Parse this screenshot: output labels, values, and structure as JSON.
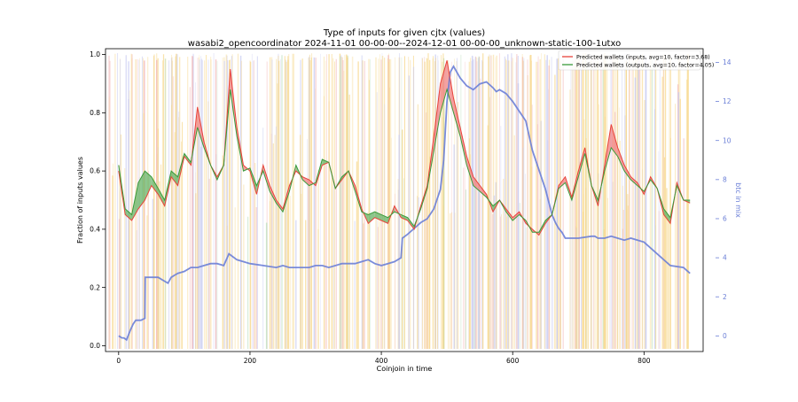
{
  "chart_data": {
    "type": "line",
    "title": "Type of inputs for given cjtx (values)",
    "subtitle": "wasabi2_opencoordinator 2024-11-01 00-00-00--2024-12-01 00-00-00_unknown-static-100-1utxo",
    "xlabel": "Coinjoin in time",
    "ylabel": "Fraction of inputs values",
    "ylabel_right": "btc in mix",
    "xlim": [
      -20,
      890
    ],
    "ylim": [
      -0.02,
      1.02
    ],
    "ylim_right": [
      -0.8,
      14.7
    ],
    "xticks": [
      0,
      200,
      400,
      600,
      800
    ],
    "yticks": [
      0.0,
      0.2,
      0.4,
      0.6,
      0.8,
      1.0
    ],
    "yticks_right": [
      0,
      2,
      4,
      6,
      8,
      10,
      12,
      14
    ],
    "legend_position": "top-right",
    "colors": {
      "inputs": "#e8433a",
      "outputs": "#3a9a3a",
      "btc": "#6b7fd7",
      "fill_red": "#f08080",
      "fill_green": "#66b366"
    },
    "series": [
      {
        "name": "Predicted wallets (inputs, avg=10, factor=3.68)",
        "x": [
          0,
          10,
          20,
          30,
          40,
          50,
          60,
          70,
          80,
          90,
          100,
          110,
          120,
          130,
          140,
          150,
          160,
          170,
          180,
          190,
          200,
          210,
          220,
          230,
          240,
          250,
          260,
          270,
          280,
          290,
          300,
          310,
          320,
          330,
          340,
          350,
          360,
          370,
          380,
          390,
          400,
          410,
          420,
          430,
          440,
          450,
          460,
          470,
          480,
          490,
          500,
          510,
          520,
          530,
          540,
          550,
          560,
          570,
          580,
          590,
          600,
          610,
          620,
          630,
          640,
          650,
          660,
          670,
          680,
          690,
          700,
          710,
          720,
          730,
          740,
          750,
          760,
          770,
          780,
          790,
          800,
          810,
          820,
          830,
          840,
          850,
          860,
          870
        ],
        "values": [
          0.6,
          0.45,
          0.43,
          0.47,
          0.5,
          0.55,
          0.52,
          0.48,
          0.58,
          0.55,
          0.65,
          0.62,
          0.82,
          0.7,
          0.62,
          0.58,
          0.62,
          0.95,
          0.75,
          0.62,
          0.6,
          0.52,
          0.62,
          0.55,
          0.5,
          0.47,
          0.55,
          0.6,
          0.58,
          0.57,
          0.55,
          0.62,
          0.63,
          0.54,
          0.57,
          0.6,
          0.55,
          0.47,
          0.42,
          0.44,
          0.43,
          0.42,
          0.48,
          0.44,
          0.43,
          0.4,
          0.48,
          0.55,
          0.72,
          0.9,
          0.98,
          0.85,
          0.75,
          0.65,
          0.58,
          0.55,
          0.52,
          0.46,
          0.5,
          0.47,
          0.44,
          0.46,
          0.42,
          0.4,
          0.38,
          0.42,
          0.45,
          0.55,
          0.58,
          0.51,
          0.6,
          0.68,
          0.55,
          0.48,
          0.62,
          0.76,
          0.68,
          0.62,
          0.58,
          0.56,
          0.52,
          0.58,
          0.54,
          0.45,
          0.42,
          0.56,
          0.5,
          0.49
        ]
      },
      {
        "name": "Predicted wallets (outputs, avg=10, factor=4.05)",
        "x": [
          0,
          10,
          20,
          30,
          40,
          50,
          60,
          70,
          80,
          90,
          100,
          110,
          120,
          130,
          140,
          150,
          160,
          170,
          180,
          190,
          200,
          210,
          220,
          230,
          240,
          250,
          260,
          270,
          280,
          290,
          300,
          310,
          320,
          330,
          340,
          350,
          360,
          370,
          380,
          390,
          400,
          410,
          420,
          430,
          440,
          450,
          460,
          470,
          480,
          490,
          500,
          510,
          520,
          530,
          540,
          550,
          560,
          570,
          580,
          590,
          600,
          610,
          620,
          630,
          640,
          650,
          660,
          670,
          680,
          690,
          700,
          710,
          720,
          730,
          740,
          750,
          760,
          770,
          780,
          790,
          800,
          810,
          820,
          830,
          840,
          850,
          860,
          870
        ],
        "values": [
          0.62,
          0.47,
          0.45,
          0.56,
          0.6,
          0.58,
          0.54,
          0.5,
          0.6,
          0.58,
          0.66,
          0.63,
          0.75,
          0.68,
          0.62,
          0.57,
          0.62,
          0.88,
          0.72,
          0.6,
          0.61,
          0.55,
          0.6,
          0.53,
          0.49,
          0.46,
          0.53,
          0.62,
          0.57,
          0.55,
          0.56,
          0.64,
          0.63,
          0.54,
          0.58,
          0.6,
          0.53,
          0.46,
          0.45,
          0.46,
          0.45,
          0.44,
          0.46,
          0.45,
          0.44,
          0.41,
          0.47,
          0.54,
          0.67,
          0.8,
          0.88,
          0.8,
          0.72,
          0.62,
          0.55,
          0.53,
          0.51,
          0.48,
          0.5,
          0.46,
          0.43,
          0.45,
          0.43,
          0.39,
          0.39,
          0.43,
          0.45,
          0.54,
          0.56,
          0.5,
          0.58,
          0.66,
          0.55,
          0.5,
          0.6,
          0.68,
          0.65,
          0.6,
          0.57,
          0.55,
          0.53,
          0.57,
          0.54,
          0.47,
          0.44,
          0.55,
          0.5,
          0.5
        ]
      },
      {
        "name": "btc in mix",
        "axis": "right",
        "x": [
          0,
          5,
          8,
          12,
          18,
          22,
          24,
          26,
          28,
          34,
          40,
          40.5,
          60,
          70,
          75,
          80,
          85,
          90,
          100,
          110,
          120,
          130,
          140,
          150,
          160,
          164,
          168,
          172,
          180,
          190,
          200,
          220,
          240,
          250,
          260,
          265,
          270,
          280,
          290,
          300,
          310,
          320,
          340,
          360,
          370,
          380,
          390,
          400,
          410,
          420,
          430,
          432,
          440,
          450,
          460,
          470,
          480,
          490,
          495,
          500,
          505,
          510,
          520,
          530,
          540,
          550,
          560,
          570,
          575,
          580,
          590,
          600,
          610,
          620,
          630,
          640,
          650,
          660,
          665,
          670,
          675,
          680,
          680.5,
          700,
          720,
          725,
          730,
          740,
          750,
          760,
          770,
          780,
          800,
          840,
          860,
          870
        ],
        "values": [
          0,
          -0.1,
          -0.1,
          -0.2,
          0.3,
          0.6,
          0.7,
          0.8,
          0.8,
          0.8,
          0.9,
          3.0,
          3.0,
          2.8,
          2.7,
          3.0,
          3.1,
          3.2,
          3.3,
          3.5,
          3.5,
          3.6,
          3.7,
          3.7,
          3.6,
          3.9,
          4.2,
          4.1,
          3.9,
          3.8,
          3.7,
          3.6,
          3.5,
          3.6,
          3.5,
          3.5,
          3.5,
          3.5,
          3.5,
          3.6,
          3.6,
          3.5,
          3.7,
          3.7,
          3.8,
          3.9,
          3.7,
          3.6,
          3.7,
          3.8,
          4.0,
          5.0,
          5.2,
          5.5,
          5.8,
          6.0,
          6.5,
          7.5,
          9.0,
          12.0,
          13.5,
          13.8,
          13.2,
          12.8,
          12.6,
          12.9,
          13.0,
          12.7,
          12.5,
          12.6,
          12.4,
          12.0,
          11.5,
          11.0,
          9.5,
          8.5,
          7.5,
          6.2,
          5.8,
          5.5,
          5.3,
          5.0,
          5.0,
          5.0,
          5.1,
          5.1,
          5.0,
          5.0,
          5.1,
          5.0,
          4.9,
          5.0,
          4.8,
          3.6,
          3.5,
          3.2
        ]
      }
    ]
  }
}
